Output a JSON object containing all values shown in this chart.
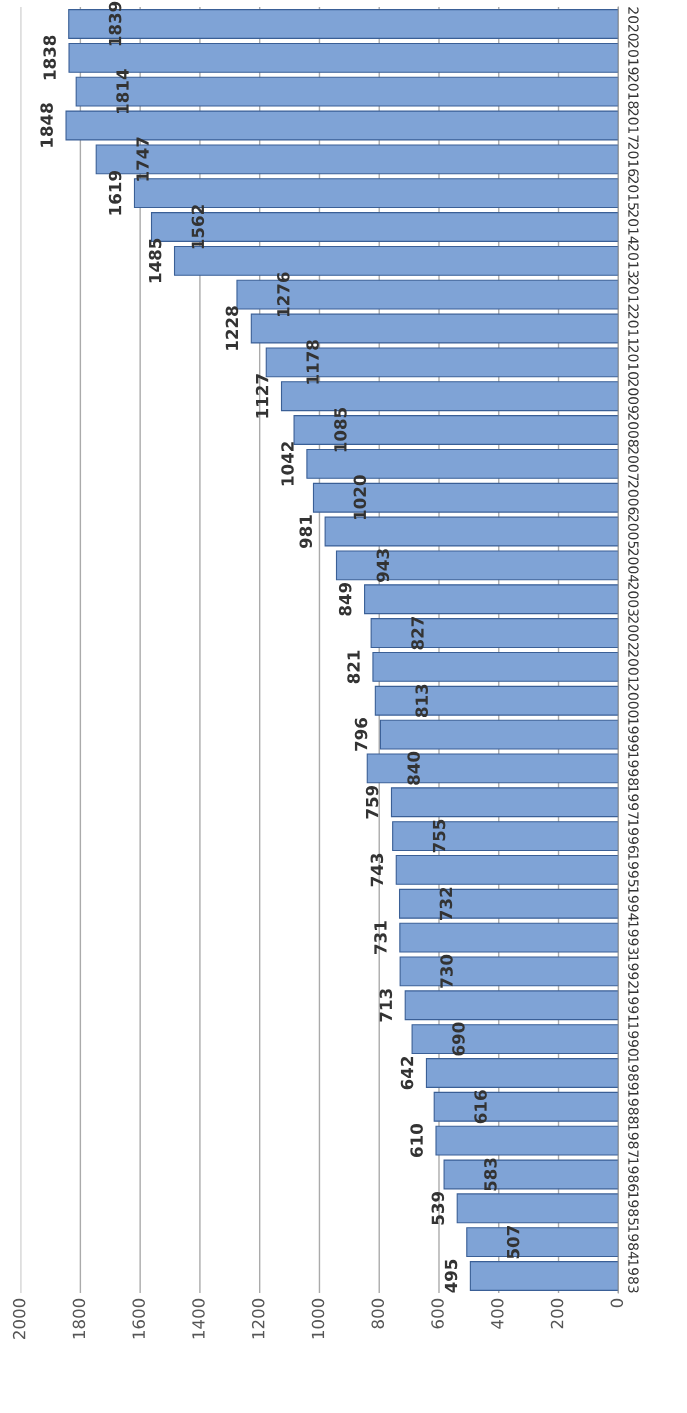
{
  "chart_data": {
    "type": "bar",
    "orientation": "horizontal",
    "categories": [
      "2020",
      "2019",
      "2018",
      "2017",
      "2016",
      "2015",
      "2014",
      "2013",
      "2012",
      "2011",
      "2010",
      "2009",
      "2008",
      "2007",
      "2006",
      "2005",
      "2004",
      "2003",
      "2002",
      "2001",
      "2000",
      "1999",
      "1998",
      "1997",
      "1996",
      "1995",
      "1994",
      "1993",
      "1992",
      "1991",
      "1990",
      "1989",
      "1988",
      "1987",
      "1986",
      "1985",
      "1984",
      "1983"
    ],
    "values": [
      1839,
      1838,
      1814,
      1848,
      1747,
      1619,
      1562,
      1485,
      1276,
      1228,
      1178,
      1127,
      1085,
      1042,
      1020,
      981,
      943,
      849,
      827,
      821,
      813,
      796,
      840,
      759,
      755,
      743,
      732,
      731,
      730,
      713,
      690,
      642,
      616,
      610,
      583,
      539,
      507,
      495
    ],
    "color": "#7fa3d6",
    "xlim": [
      2000,
      0
    ],
    "xticks": [
      0,
      200,
      400,
      600,
      800,
      1000,
      1200,
      1400,
      1600,
      1800,
      2000
    ],
    "grid": "x",
    "data_labels": true
  }
}
